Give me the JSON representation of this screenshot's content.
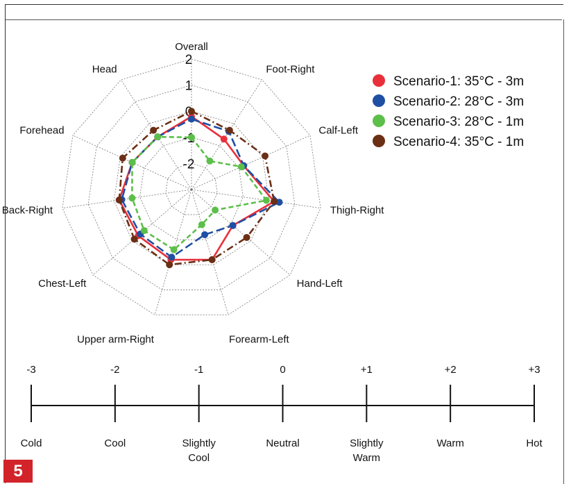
{
  "figure": {
    "number_label": "5"
  },
  "chart_data": {
    "type": "radar",
    "axes": [
      "Overall",
      "Foot-Right",
      "Calf-Left",
      "Thigh-Right",
      "Hand-Left",
      "Forearm-Left",
      "Upper arm-Right",
      "Chest-Left",
      "Back-Right",
      "Forehead",
      "Head"
    ],
    "radial_ticks": [
      "-2",
      "-1",
      "0",
      "1",
      "2"
    ],
    "radial_range": [
      -3,
      2
    ],
    "grid": true,
    "legend_position": "top-right",
    "series": [
      {
        "name": "Scenario-1: 35°C - 3m",
        "color": "#e8303a",
        "dash": "solid",
        "values": [
          -0.2,
          -0.7,
          -0.8,
          0.2,
          -0.9,
          -0.2,
          -0.2,
          -0.3,
          -0.2,
          -0.5,
          -0.6
        ]
      },
      {
        "name": "Scenario-2: 28°C - 3m",
        "color": "#1f4fa3",
        "dash": "long-dash",
        "values": [
          -0.3,
          -0.35,
          -0.8,
          0.4,
          -0.9,
          -1.2,
          -0.3,
          -0.4,
          -0.3,
          -0.5,
          -0.6
        ]
      },
      {
        "name": "Scenario-3: 28°C - 1m",
        "color": "#5cbf4a",
        "dash": "dash",
        "values": [
          -1.0,
          -1.7,
          -0.9,
          -0.1,
          -1.8,
          -1.6,
          -0.6,
          -0.6,
          -0.7,
          -0.5,
          -0.6
        ]
      },
      {
        "name": "Scenario-4: 35°C - 1m",
        "color": "#6b2f15",
        "dash": "dash-dot",
        "values": [
          0.0,
          -0.3,
          0.1,
          0.2,
          -0.2,
          -0.2,
          0.0,
          -0.1,
          -0.2,
          -0.1,
          -0.3
        ]
      }
    ]
  },
  "scale": {
    "ticks": [
      {
        "value": "-3",
        "label": "Cold"
      },
      {
        "value": "-2",
        "label": "Cool"
      },
      {
        "value": "-1",
        "label": "Slightly Cool"
      },
      {
        "value": "0",
        "label": "Neutral"
      },
      {
        "value": "+1",
        "label": "Slightly Warm"
      },
      {
        "value": "+2",
        "label": "Warm"
      },
      {
        "value": "+3",
        "label": "Hot"
      }
    ]
  }
}
